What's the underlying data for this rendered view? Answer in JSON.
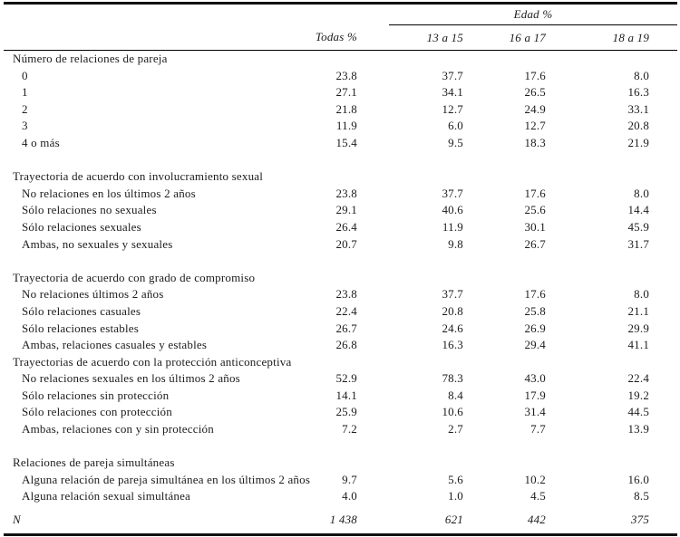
{
  "page": {
    "background_color": "#ffffff",
    "text_color": "#1c1c1c",
    "rule_color": "#111111"
  },
  "table": {
    "header": {
      "edad_group": "Edad %",
      "todas": "Todas %",
      "ages": [
        "13 a 15",
        "16 a 17",
        "18 a 19"
      ]
    },
    "sections": [
      {
        "title": "Número de relaciones de pareja",
        "gap_before": false,
        "rows": [
          {
            "label": "0",
            "values": [
              "23.8",
              "37.7",
              "17.6",
              "8.0"
            ]
          },
          {
            "label": "1",
            "values": [
              "27.1",
              "34.1",
              "26.5",
              "16.3"
            ]
          },
          {
            "label": "2",
            "values": [
              "21.8",
              "12.7",
              "24.9",
              "33.1"
            ]
          },
          {
            "label": "3",
            "values": [
              "11.9",
              "6.0",
              "12.7",
              "20.8"
            ]
          },
          {
            "label": "4 o más",
            "values": [
              "15.4",
              "9.5",
              "18.3",
              "21.9"
            ]
          }
        ]
      },
      {
        "title": "Trayectoria de acuerdo con involucramiento sexual",
        "gap_before": true,
        "rows": [
          {
            "label": "No relaciones en los últimos 2 años",
            "values": [
              "23.8",
              "37.7",
              "17.6",
              "8.0"
            ]
          },
          {
            "label": "Sólo relaciones no sexuales",
            "values": [
              "29.1",
              "40.6",
              "25.6",
              "14.4"
            ]
          },
          {
            "label": "Sólo relaciones sexuales",
            "values": [
              "26.4",
              "11.9",
              "30.1",
              "45.9"
            ]
          },
          {
            "label": "Ambas, no sexuales y sexuales",
            "values": [
              "20.7",
              "9.8",
              "26.7",
              "31.7"
            ]
          }
        ]
      },
      {
        "title": "Trayectoria de acuerdo con grado de compromiso",
        "gap_before": true,
        "rows": [
          {
            "label": "No relaciones últimos 2 años",
            "values": [
              "23.8",
              "37.7",
              "17.6",
              "8.0"
            ]
          },
          {
            "label": "Sólo relaciones casuales",
            "values": [
              "22.4",
              "20.8",
              "25.8",
              "21.1"
            ]
          },
          {
            "label": "Sólo relaciones estables",
            "values": [
              "26.7",
              "24.6",
              "26.9",
              "29.9"
            ]
          },
          {
            "label": "Ambas, relaciones casuales y estables",
            "values": [
              "26.8",
              "16.3",
              "29.4",
              "41.1"
            ]
          }
        ]
      },
      {
        "title": "Trayectorias de acuerdo con la protección anticonceptiva",
        "gap_before": false,
        "rows": [
          {
            "label": "No relaciones sexuales en los últimos 2 años",
            "values": [
              "52.9",
              "78.3",
              "43.0",
              "22.4"
            ]
          },
          {
            "label": "Sólo relaciones sin protección",
            "values": [
              "14.1",
              "8.4",
              "17.9",
              "19.2"
            ]
          },
          {
            "label": "Sólo relaciones con protección",
            "values": [
              "25.9",
              "10.6",
              "31.4",
              "44.5"
            ]
          },
          {
            "label": "Ambas, relaciones con y sin protección",
            "values": [
              "7.2",
              "2.7",
              "7.7",
              "13.9"
            ]
          }
        ]
      },
      {
        "title": "Relaciones de pareja simultáneas",
        "gap_before": true,
        "rows": [
          {
            "label": "Alguna relación de pareja simultánea en los últimos 2 años",
            "values": [
              "9.7",
              "5.6",
              "10.2",
              "16.0"
            ]
          },
          {
            "label": "Alguna relación sexual simultánea",
            "values": [
              "4.0",
              "1.0",
              "4.5",
              "8.5"
            ]
          }
        ]
      }
    ],
    "footer": {
      "label": "N",
      "values": [
        "1 438",
        "621",
        "442",
        "375"
      ]
    }
  }
}
